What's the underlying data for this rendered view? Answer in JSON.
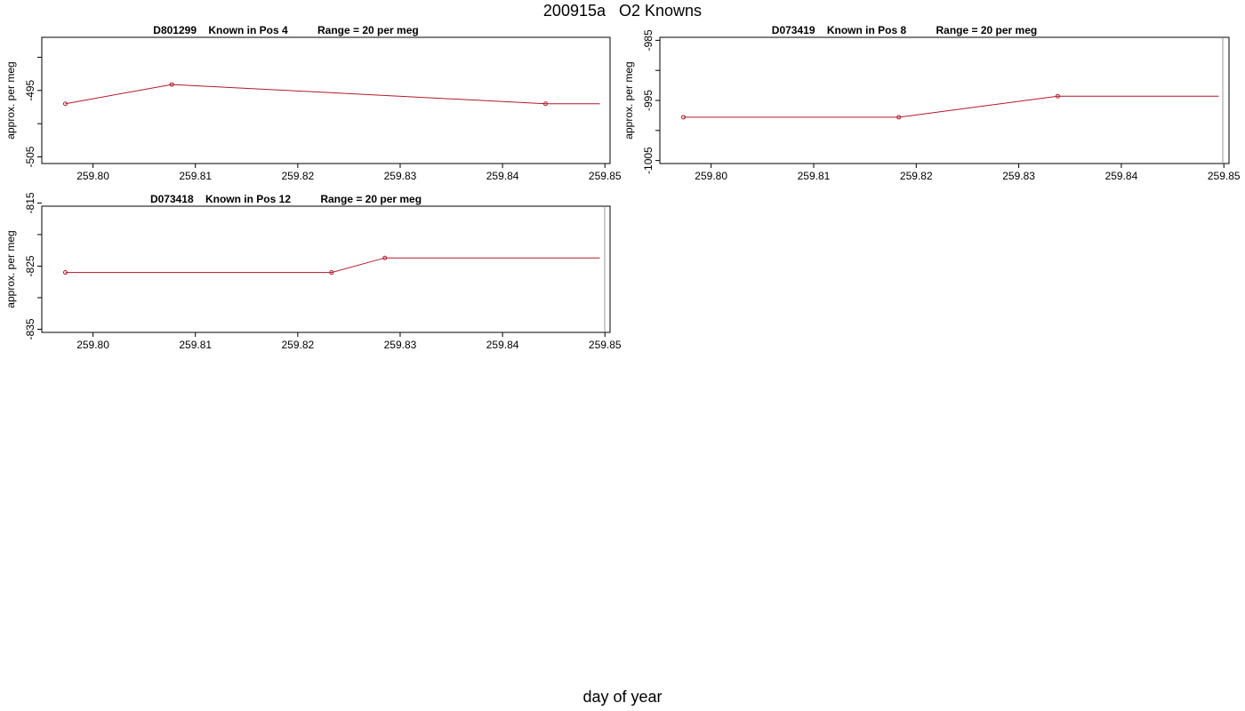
{
  "title": "200915a   O2 Knowns",
  "xlabel": "day of year",
  "colors": {
    "series": "#b2182b"
  },
  "chart_data": [
    {
      "type": "line",
      "title": "D801299    Known in Pos 4          Range = 20 per meg",
      "ylabel": "approx. per meg",
      "xlim": [
        259.795,
        259.8505
      ],
      "ylim": [
        -506,
        -487
      ],
      "xticks": [
        259.8,
        259.81,
        259.82,
        259.83,
        259.84,
        259.85
      ],
      "xtick_labels": [
        "259.80",
        "259.81",
        "259.82",
        "259.83",
        "259.84",
        "259.85"
      ],
      "yticks": [
        -505,
        -495
      ],
      "ytick_labels": [
        "-505",
        "-495"
      ],
      "x": [
        259.7973,
        259.8077,
        259.8442
      ],
      "y": [
        -497.0,
        -494.1,
        -497.0
      ],
      "line_end": [
        259.8495,
        -497.0
      ]
    },
    {
      "type": "line",
      "title": "D073419    Known in Pos 8          Range = 20 per meg",
      "ylabel": "approx. per meg",
      "xlim": [
        259.795,
        259.8505
      ],
      "ylim": [
        -1005.5,
        -984.5
      ],
      "xticks": [
        259.8,
        259.81,
        259.82,
        259.83,
        259.84,
        259.85
      ],
      "xtick_labels": [
        "259.80",
        "259.81",
        "259.82",
        "259.83",
        "259.84",
        "259.85"
      ],
      "yticks": [
        -1005,
        -995,
        -985
      ],
      "ytick_labels": [
        "-1005",
        "-995",
        "-985"
      ],
      "x": [
        259.7973,
        259.8183,
        259.8338
      ],
      "y": [
        -997.8,
        -997.8,
        -994.3
      ],
      "line_end": [
        259.8495,
        -994.3
      ]
    },
    {
      "type": "line",
      "title": "D073418    Known in Pos 12          Range = 20 per meg",
      "ylabel": "approx. per meg",
      "xlim": [
        259.795,
        259.8505
      ],
      "ylim": [
        -835.5,
        -815.5
      ],
      "xticks": [
        259.8,
        259.81,
        259.82,
        259.83,
        259.84,
        259.85
      ],
      "xtick_labels": [
        "259.80",
        "259.81",
        "259.82",
        "259.83",
        "259.84",
        "259.85"
      ],
      "yticks": [
        -835,
        -825,
        -815
      ],
      "ytick_labels": [
        "-835",
        "-825",
        "-815"
      ],
      "x": [
        259.7973,
        259.8233,
        259.8285
      ],
      "y": [
        -826.0,
        -826.0,
        -823.7
      ],
      "line_end": [
        259.8495,
        -823.7
      ]
    }
  ]
}
